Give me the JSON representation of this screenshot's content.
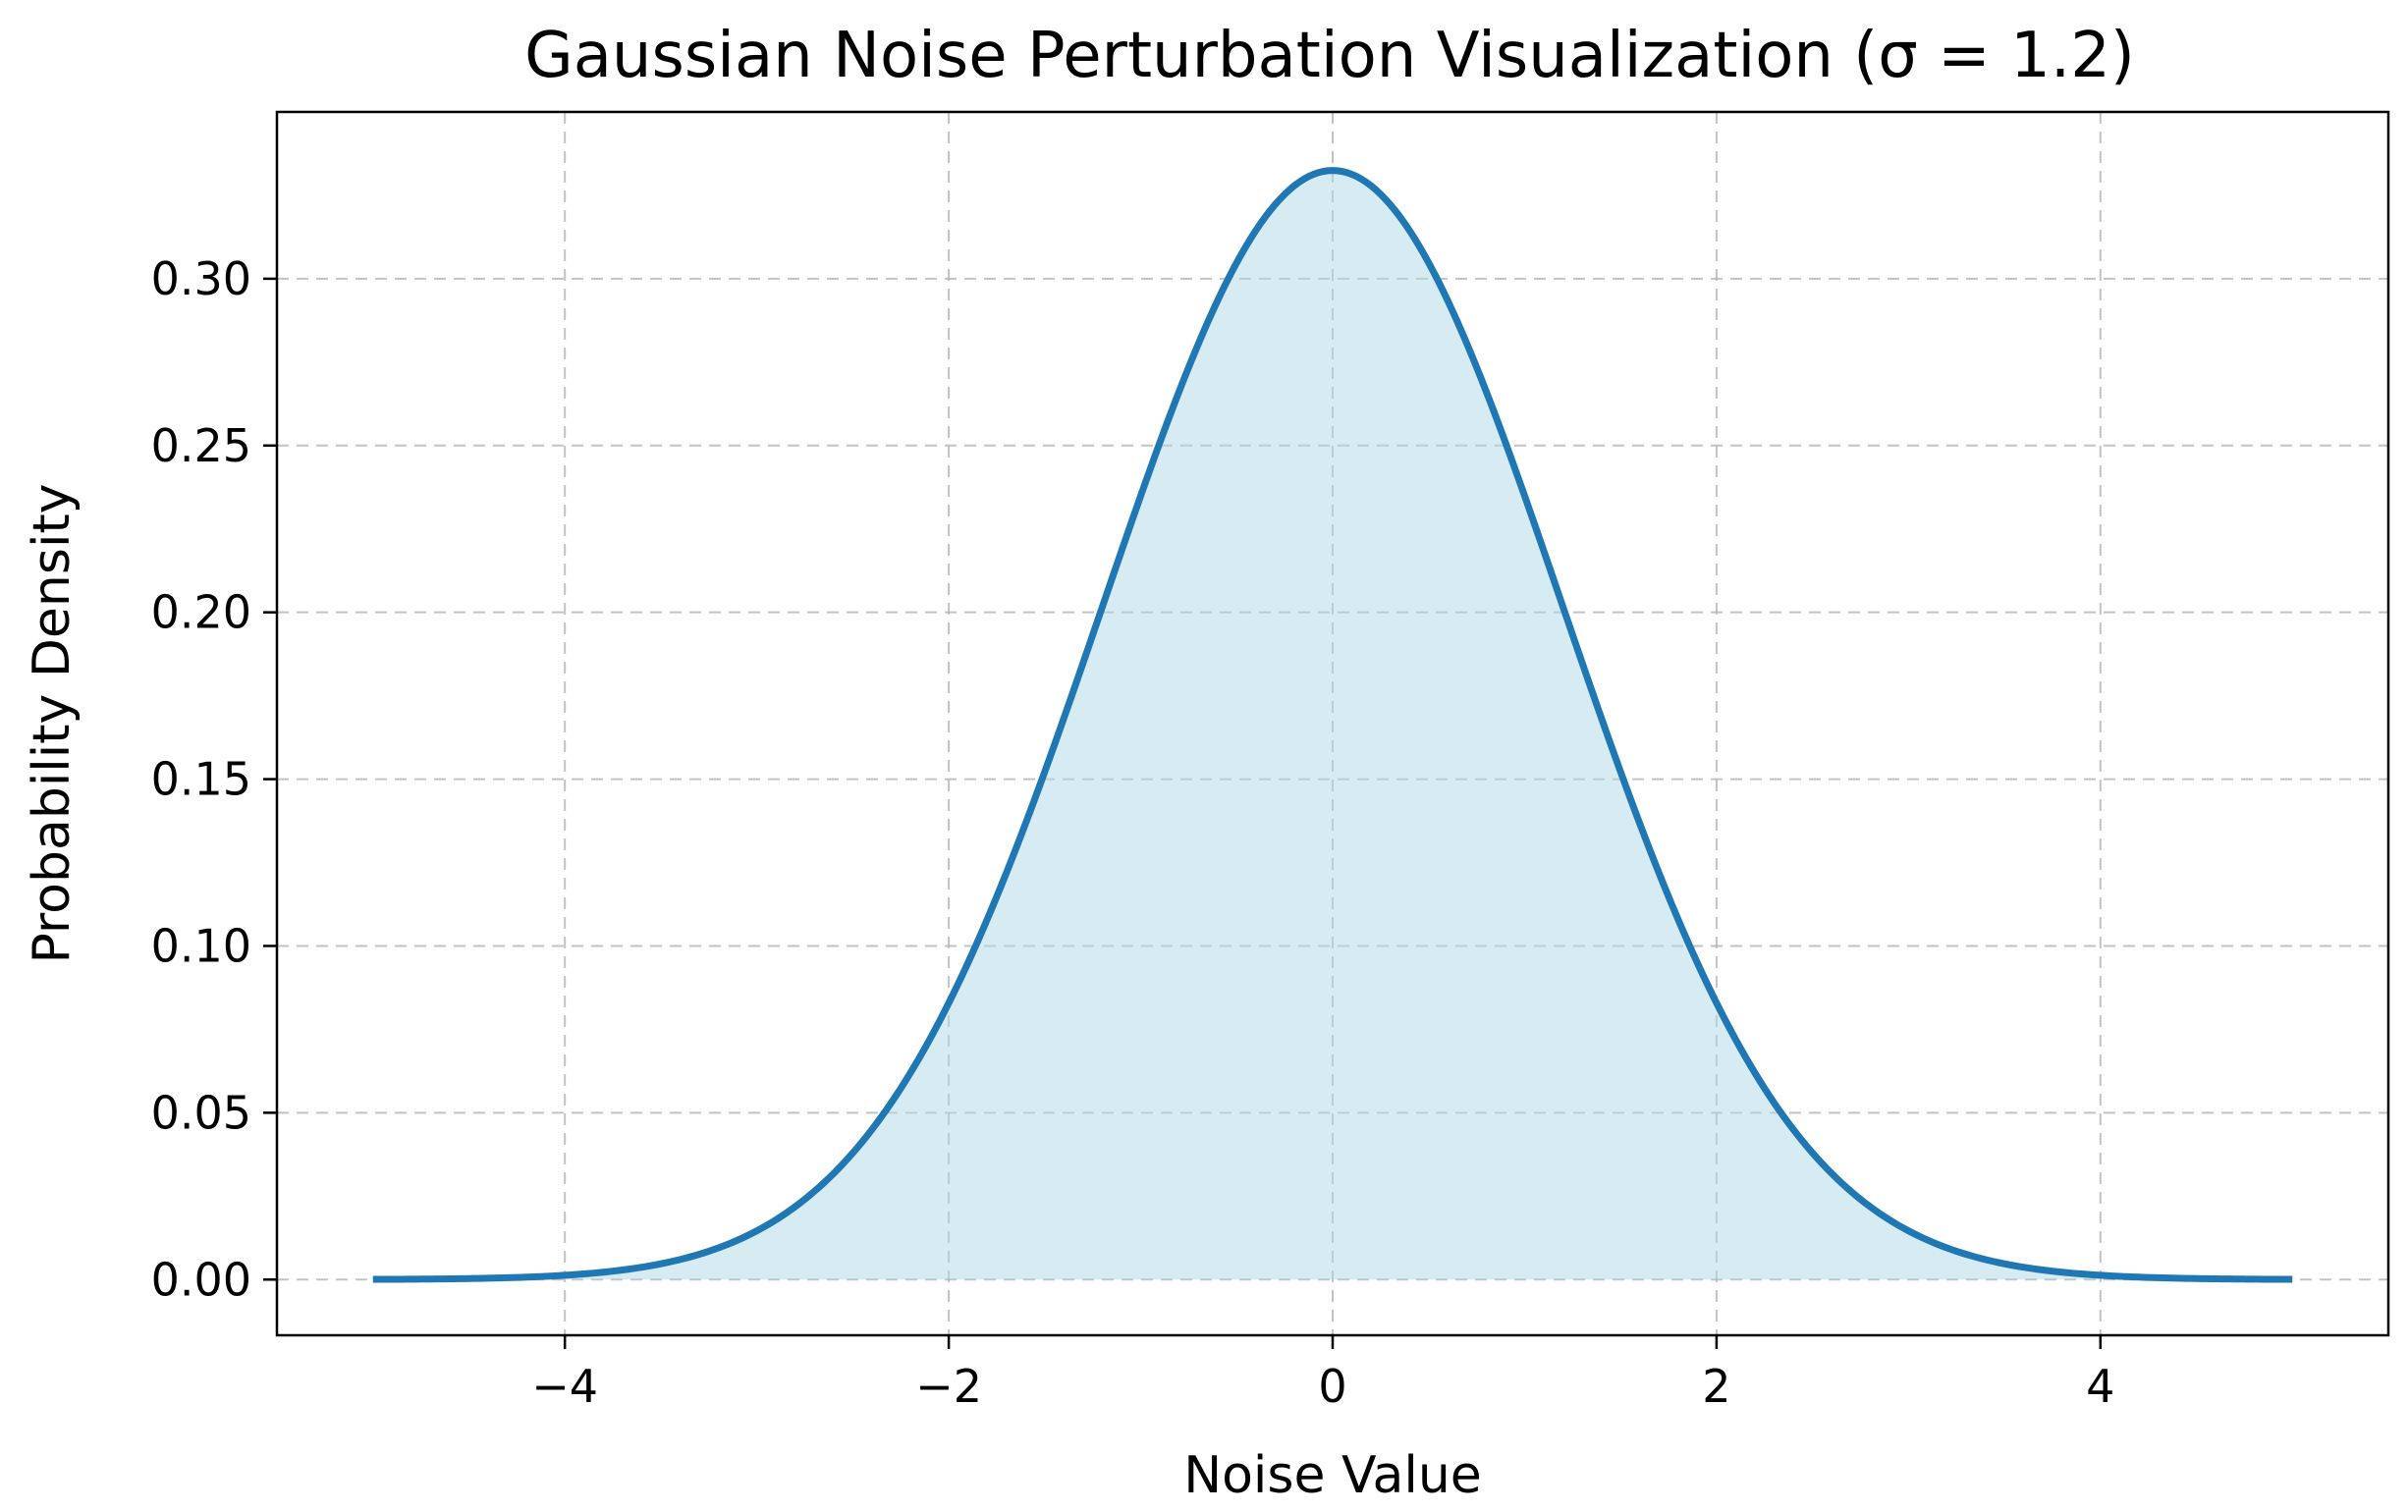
{
  "chart_data": {
    "type": "area",
    "title": "Gaussian Noise Perturbation Visualization (σ = 1.2)",
    "xlabel": "Noise Value",
    "ylabel": "Probability Density",
    "xlim": [
      -5.5,
      5.5
    ],
    "ylim": [
      -0.0167,
      0.35
    ],
    "xticks": [
      -4,
      -2,
      0,
      2,
      4
    ],
    "xtick_labels": [
      "−4",
      "−2",
      "0",
      "2",
      "4"
    ],
    "yticks": [
      0.0,
      0.05,
      0.1,
      0.15,
      0.2,
      0.25,
      0.3
    ],
    "ytick_labels": [
      "0.00",
      "0.05",
      "0.10",
      "0.15",
      "0.20",
      "0.25",
      "0.30"
    ],
    "grid": true,
    "series": [
      {
        "distribution": "normal",
        "mean": 0,
        "sigma": 1.2,
        "x_range": [
          -5,
          5
        ],
        "x": [
          -5.0,
          -4.5,
          -4.0,
          -3.5,
          -3.0,
          -2.5,
          -2.0,
          -1.5,
          -1.0,
          -0.5,
          0.0,
          0.5,
          1.0,
          1.5,
          2.0,
          2.5,
          3.0,
          3.5,
          4.0,
          4.5,
          5.0
        ],
        "y": [
          0.0001,
          0.0003,
          0.0013,
          0.0047,
          0.0146,
          0.0377,
          0.0829,
          0.152,
          0.2349,
          0.3047,
          0.3324,
          0.3047,
          0.2349,
          0.152,
          0.0829,
          0.0377,
          0.0146,
          0.0047,
          0.0013,
          0.0003,
          0.0001
        ],
        "line_color": "#1f77b4",
        "fill_color": "#add8e6"
      }
    ]
  }
}
